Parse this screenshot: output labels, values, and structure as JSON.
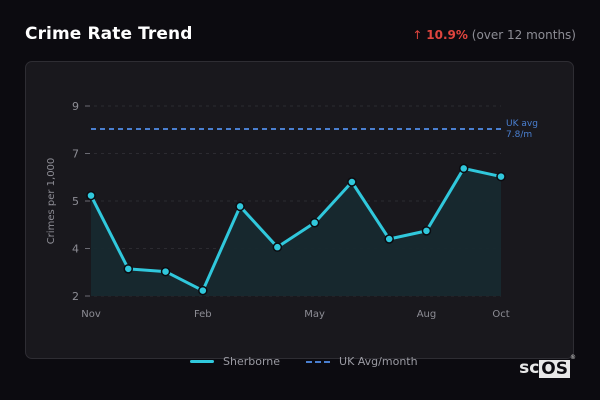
{
  "header": {
    "title": "Crime Rate Trend",
    "change_arrow": "↑",
    "change_pct": "10.9%",
    "change_period": "(over 12 months)"
  },
  "legend": {
    "series_label": "Sherborne",
    "avg_label": "UK Avg/month"
  },
  "annotation": {
    "line1": "UK avg",
    "line2": "7.8/m"
  },
  "logo": {
    "sc": "sc",
    "os": "OS",
    "reg": "®"
  },
  "colors": {
    "series": "#30c8dc",
    "average": "#4a7fd0",
    "change": "#e0453e",
    "area_fill": "#17292f"
  },
  "chart_data": {
    "type": "line",
    "title": "Crime Rate Trend",
    "xlabel": "",
    "ylabel": "Crimes per 1,000",
    "x": [
      "Nov",
      "Dec",
      "Jan",
      "Feb",
      "Mar",
      "Apr",
      "May",
      "Jun",
      "Jul",
      "Aug",
      "Sep",
      "Oct"
    ],
    "x_tick_labels": [
      "Nov",
      "Feb",
      "May",
      "Aug",
      "Oct"
    ],
    "y_tick_labels": [
      "2",
      "4",
      "5",
      "7",
      "9"
    ],
    "ylim": [
      2,
      9
    ],
    "grid": true,
    "legend_position": "bottom",
    "series": [
      {
        "name": "Sherborne",
        "values": [
          5.7,
          3.0,
          2.9,
          2.2,
          5.3,
          3.8,
          4.7,
          6.2,
          4.1,
          4.4,
          6.7,
          6.4
        ],
        "style": "solid-markers-area"
      },
      {
        "name": "UK Avg/month",
        "values": [
          7.8,
          7.8,
          7.8,
          7.8,
          7.8,
          7.8,
          7.8,
          7.8,
          7.8,
          7.8,
          7.8,
          7.8
        ],
        "style": "dashed"
      }
    ],
    "annotations": [
      "UK avg 7.8/m"
    ],
    "change": "↑ 10.9% (over 12 months)"
  }
}
